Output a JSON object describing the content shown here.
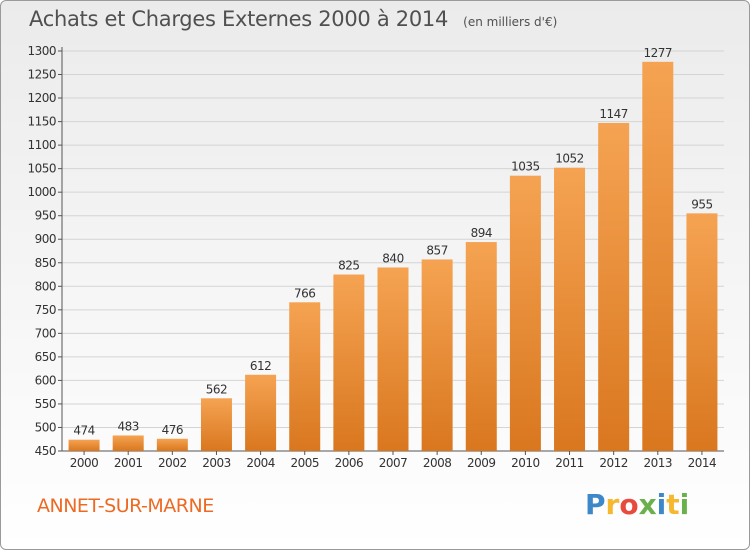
{
  "title": "Achats et Charges Externes 2000 à 2014",
  "subtitle": "(en milliers d'€)",
  "city": "ANNET-SUR-MARNE",
  "logo": {
    "text": "Proxiti",
    "letters": [
      "P",
      "r",
      "o",
      "x",
      "i",
      "t",
      "i"
    ],
    "colors": [
      "#3d88c9",
      "#f5b82e",
      "#e84b3c",
      "#6ab04c",
      "#3d88c9",
      "#f5b82e",
      "#6ab04c"
    ]
  },
  "colors": {
    "bar_top": "#f5a352",
    "bar_bottom": "#d9771f",
    "title_text": "#505050",
    "city_text": "#ee6a23"
  },
  "chart_data": {
    "type": "bar",
    "categories": [
      "2000",
      "2001",
      "2002",
      "2003",
      "2004",
      "2005",
      "2006",
      "2007",
      "2008",
      "2009",
      "2010",
      "2011",
      "2012",
      "2013",
      "2014"
    ],
    "values": [
      474,
      483,
      476,
      562,
      612,
      766,
      825,
      840,
      857,
      894,
      1035,
      1052,
      1147,
      1277,
      955
    ],
    "ylim": [
      450,
      1300
    ],
    "yticks": [
      450,
      500,
      550,
      600,
      650,
      700,
      750,
      800,
      850,
      900,
      950,
      1000,
      1050,
      1100,
      1150,
      1200,
      1250,
      1300
    ],
    "grid": true,
    "legend": "none"
  }
}
